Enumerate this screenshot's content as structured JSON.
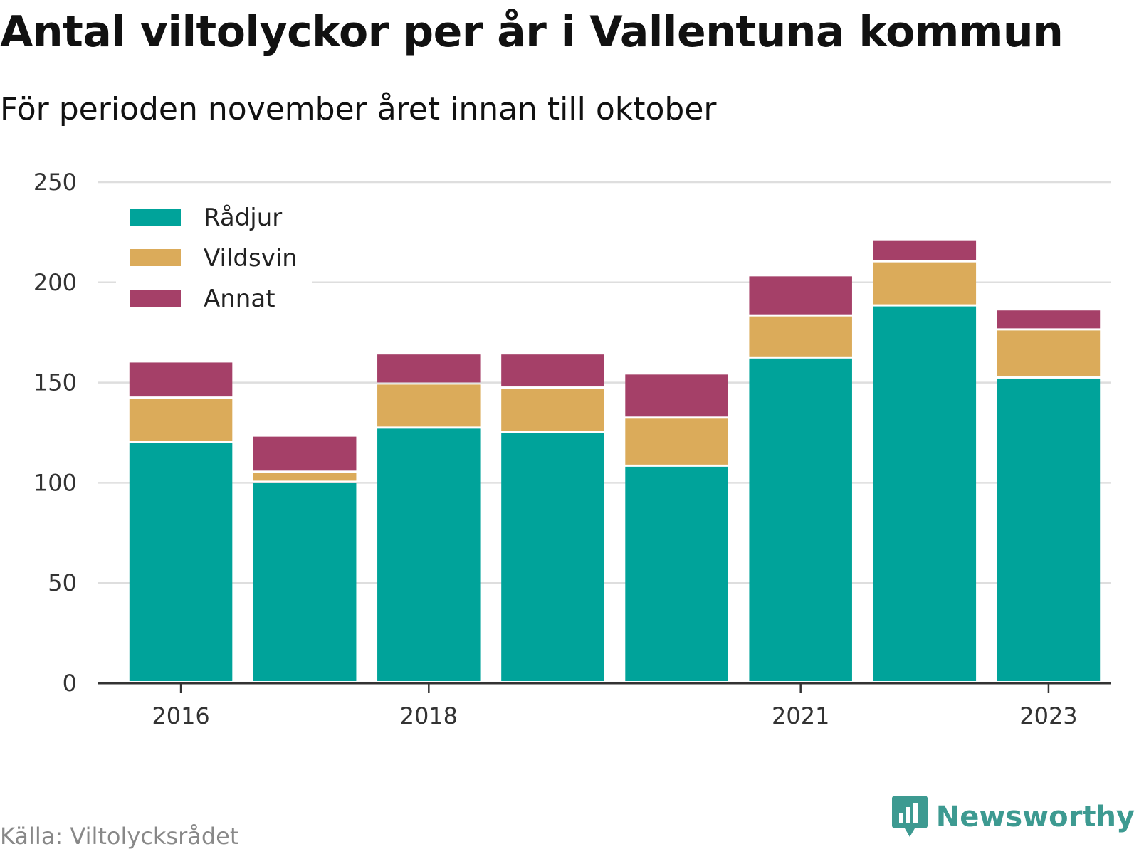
{
  "title": "Antal viltolyckor per år i Vallentuna kommun",
  "subtitle": "För perioden november året innan till oktober",
  "source": "Källa: Viltolycksrådet",
  "brand": {
    "name": "Newsworthy",
    "icon": "newsworthy-logo-icon",
    "color": "#3d9a91"
  },
  "chart_data": {
    "type": "bar",
    "stacked": true,
    "categories": [
      "2016",
      "2017",
      "2018",
      "2019",
      "2020",
      "2021",
      "2022",
      "2023"
    ],
    "x_tick_labels": [
      "2016",
      "",
      "2018",
      "",
      "",
      "2021",
      "",
      "2023"
    ],
    "series": [
      {
        "name": "Rådjur",
        "color": "#00a39a",
        "values": [
          120,
          100,
          127,
          125,
          108,
          162,
          188,
          152
        ]
      },
      {
        "name": "Vildsvin",
        "color": "#dbab5a",
        "values": [
          22,
          5,
          22,
          22,
          24,
          21,
          22,
          24
        ]
      },
      {
        "name": "Annat",
        "color": "#a54068",
        "values": [
          18,
          18,
          15,
          17,
          22,
          20,
          11,
          10
        ]
      }
    ],
    "ylim": [
      0,
      250
    ],
    "yticks": [
      0,
      50,
      100,
      150,
      200,
      250
    ],
    "grid": true,
    "legend_position": "top-left",
    "xlabel": "",
    "ylabel": ""
  }
}
